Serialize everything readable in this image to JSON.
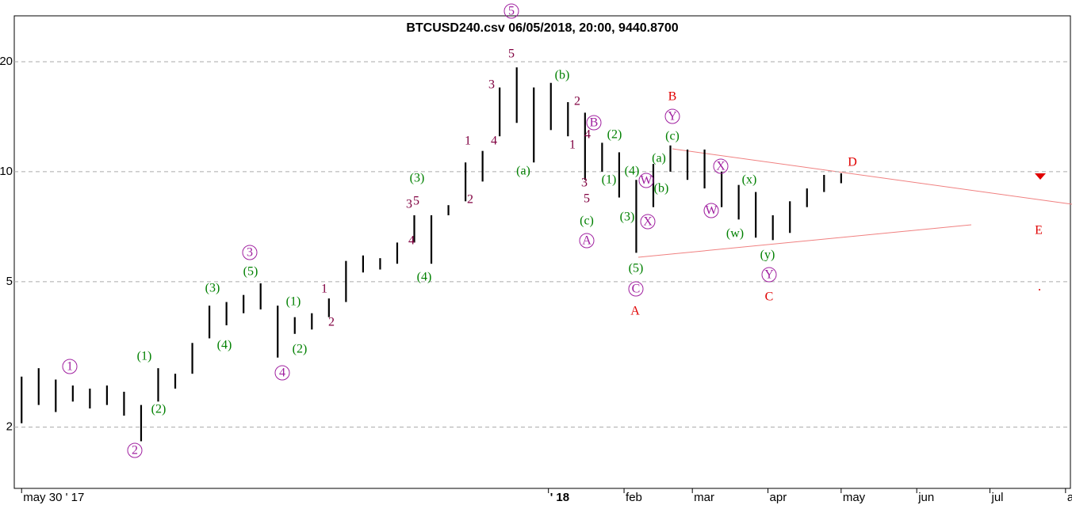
{
  "chart_data": {
    "type": "hilo",
    "title": "BTCUSD240.csv  06/05/2018, 20:00, 9440.8700",
    "color": "#000000",
    "log": true,
    "grid": true,
    "x": [
      0,
      7,
      14,
      21,
      28,
      35,
      42,
      49,
      56,
      63,
      70,
      77,
      84,
      91,
      98,
      105,
      112,
      119,
      126,
      133,
      140,
      147,
      154,
      161,
      168,
      175,
      182,
      189,
      196,
      203,
      210,
      217,
      224,
      231,
      238,
      245,
      252,
      259,
      266,
      273,
      280,
      287,
      294,
      301,
      308,
      315,
      322,
      329,
      336
    ],
    "high": [
      2.75,
      2.9,
      2.7,
      2.6,
      2.55,
      2.6,
      2.5,
      2.3,
      2.9,
      2.8,
      3.4,
      4.3,
      4.4,
      4.6,
      4.95,
      4.3,
      4.0,
      4.1,
      4.5,
      5.7,
      5.9,
      5.8,
      6.4,
      7.6,
      7.6,
      8.1,
      10.6,
      11.4,
      17,
      19.3,
      17,
      17.5,
      15.5,
      14.5,
      12,
      11.3,
      9.5,
      10.5,
      11.8,
      11.5,
      11.5,
      10,
      9.2,
      8.8,
      7.6,
      8.3,
      9.0,
      9.8,
      9.9
    ],
    "low": [
      2.05,
      2.3,
      2.2,
      2.35,
      2.25,
      2.3,
      2.15,
      1.83,
      2.35,
      2.55,
      2.8,
      3.5,
      3.8,
      4.1,
      4.2,
      3.1,
      3.6,
      3.7,
      4.0,
      4.4,
      5.3,
      5.4,
      5.6,
      6.4,
      5.6,
      7.6,
      8.3,
      9.4,
      12.5,
      13.6,
      10.6,
      13,
      12.5,
      9.5,
      10,
      8.5,
      6.0,
      8,
      10,
      9.5,
      9,
      8,
      7.4,
      6.6,
      6.5,
      6.8,
      8.0,
      8.8,
      9.3
    ],
    "xlim": [
      -3,
      430
    ],
    "xticks": [
      {
        "value": 0,
        "label": "may 30 ' 17"
      },
      {
        "value": 216,
        "label": "' 18"
      },
      {
        "value": 247,
        "label": "feb"
      },
      {
        "value": 275,
        "label": "mar"
      },
      {
        "value": 306,
        "label": "apr"
      },
      {
        "value": 336,
        "label": "may"
      },
      {
        "value": 367,
        "label": "jun"
      },
      {
        "value": 397,
        "label": "jul"
      },
      {
        "value": 428,
        "label": "a"
      }
    ],
    "ylim": [
      1.36,
      26.7
    ],
    "yticks": [
      2,
      5,
      10,
      20
    ],
    "annotations": [
      {
        "text": "1",
        "color": "#a020a0",
        "circle": true
      },
      {
        "text": "2",
        "color": "#a020a0",
        "circle": true
      },
      {
        "text": "3",
        "color": "#a020a0",
        "circle": true
      },
      {
        "text": "4",
        "color": "#a020a0",
        "circle": true
      },
      {
        "text": "5",
        "color": "#a020a0",
        "circle": true
      },
      {
        "text": "B",
        "color": "#a020a0",
        "circle": true
      },
      {
        "text": "A",
        "color": "#a020a0",
        "circle": true
      },
      {
        "text": "C",
        "color": "#a020a0",
        "circle": true
      },
      {
        "text": "W",
        "color": "#a020a0",
        "circle": true
      },
      {
        "text": "X",
        "color": "#a020a0",
        "circle": true
      },
      {
        "text": "Y",
        "color": "#a020a0",
        "circle": true
      },
      {
        "text": "X",
        "color": "#a020a0",
        "circle": true
      },
      {
        "text": "W",
        "color": "#a020a0",
        "circle": true
      },
      {
        "text": "Y",
        "color": "#a020a0",
        "circle": true
      },
      {
        "text": "5",
        "color": "#800040"
      },
      {
        "text": "3",
        "color": "#800040"
      },
      {
        "text": "1",
        "color": "#800040"
      },
      {
        "text": "4",
        "color": "#800040"
      },
      {
        "text": "2",
        "color": "#800040"
      },
      {
        "text": "3",
        "color": "#800040"
      },
      {
        "text": "5",
        "color": "#800040"
      },
      {
        "text": "4",
        "color": "#800040"
      },
      {
        "text": "1",
        "color": "#800040"
      },
      {
        "text": "2",
        "color": "#800040"
      },
      {
        "text": "2",
        "color": "#800040"
      },
      {
        "text": "1",
        "color": "#800040"
      },
      {
        "text": "4",
        "color": "#800040"
      },
      {
        "text": "3",
        "color": "#800040"
      },
      {
        "text": "5",
        "color": "#800040"
      },
      {
        "text": "(1)",
        "color": "#008000"
      },
      {
        "text": "(2)",
        "color": "#008000"
      },
      {
        "text": "(3)",
        "color": "#008000"
      },
      {
        "text": "(4)",
        "color": "#008000"
      },
      {
        "text": "(5)",
        "color": "#008000"
      },
      {
        "text": "(1)",
        "color": "#008000"
      },
      {
        "text": "(2)",
        "color": "#008000"
      },
      {
        "text": "(3)",
        "color": "#008000"
      },
      {
        "text": "(4)",
        "color": "#008000"
      },
      {
        "text": "(b)",
        "color": "#008000"
      },
      {
        "text": "(a)",
        "color": "#008000"
      },
      {
        "text": "(c)",
        "color": "#008000"
      },
      {
        "text": "(5)",
        "color": "#008000"
      },
      {
        "text": "(2)",
        "color": "#008000"
      },
      {
        "text": "(1)",
        "color": "#008000"
      },
      {
        "text": "(4)",
        "color": "#008000"
      },
      {
        "text": "(3)",
        "color": "#008000"
      },
      {
        "text": "(a)",
        "color": "#008000"
      },
      {
        "text": "(b)",
        "color": "#008000"
      },
      {
        "text": "(c)",
        "color": "#008000"
      },
      {
        "text": "(x)",
        "color": "#008000"
      },
      {
        "text": "(w)",
        "color": "#008000"
      },
      {
        "text": "(y)",
        "color": "#008000"
      },
      {
        "text": "A",
        "color": "#e00000"
      },
      {
        "text": "B",
        "color": "#e00000"
      },
      {
        "text": "C",
        "color": "#e00000"
      },
      {
        "text": "D",
        "color": "#e00000"
      },
      {
        "text": "E",
        "color": "#e00000"
      }
    ]
  }
}
